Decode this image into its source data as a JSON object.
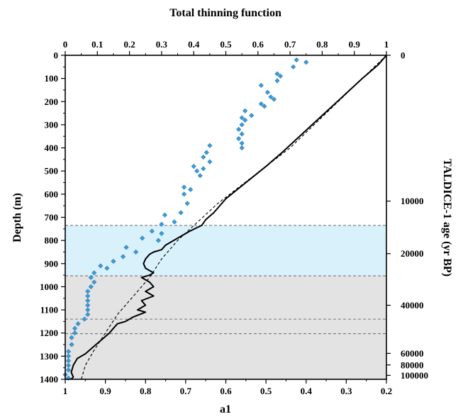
{
  "chart_data": {
    "type": "line",
    "top_axis": {
      "title": "Total thinning function",
      "range": [
        0,
        1
      ],
      "ticks": [
        "0",
        "0.1",
        "0.2",
        "0.3",
        "0.4",
        "0.5",
        "0.6",
        "0.7",
        "0.8",
        "0.9",
        "1"
      ]
    },
    "bottom_axis": {
      "title": "a1",
      "range": [
        1,
        0.2
      ],
      "ticks": [
        "1",
        "0.9",
        "0.8",
        "0.7",
        "0.6",
        "0.5",
        "0.4",
        "0.3",
        "0.2"
      ]
    },
    "left_axis": {
      "title": "Depth (m)",
      "range": [
        0,
        1400
      ],
      "ticks": [
        "0",
        "100",
        "200",
        "300",
        "400",
        "500",
        "600",
        "700",
        "800",
        "900",
        "1000",
        "1100",
        "1200",
        "1300",
        "1400"
      ]
    },
    "right_axis": {
      "title": "TALDICE-1 age (yr BP)",
      "ticks": [
        {
          "label": "0",
          "depth": 0
        },
        {
          "label": "10000",
          "depth": 630
        },
        {
          "label": "20000",
          "depth": 857
        },
        {
          "label": "40000",
          "depth": 1080
        },
        {
          "label": "60000",
          "depth": 1288
        },
        {
          "label": "80000",
          "depth": 1338
        },
        {
          "label": "100000",
          "depth": 1383
        }
      ]
    },
    "shaded_bands": [
      {
        "from": 735,
        "to": 953,
        "color": "#d9f1fb"
      },
      {
        "from": 953,
        "to": 1400,
        "color": "#e3e3e3"
      }
    ],
    "reference_lines_depth": [
      735,
      953,
      1140,
      1203
    ],
    "series": [
      {
        "style": "solid",
        "axis": "bottom",
        "color": "#000000",
        "points": [
          [
            0.2,
            0
          ],
          [
            0.22,
            40
          ],
          [
            0.26,
            100
          ],
          [
            0.31,
            180
          ],
          [
            0.36,
            260
          ],
          [
            0.41,
            340
          ],
          [
            0.46,
            420
          ],
          [
            0.5,
            480
          ],
          [
            0.55,
            550
          ],
          [
            0.6,
            620
          ],
          [
            0.63,
            680
          ],
          [
            0.65,
            710
          ],
          [
            0.66,
            735
          ],
          [
            0.69,
            760
          ],
          [
            0.72,
            790
          ],
          [
            0.75,
            820
          ],
          [
            0.76,
            840
          ],
          [
            0.78,
            850
          ],
          [
            0.79,
            860
          ],
          [
            0.8,
            880
          ],
          [
            0.805,
            900
          ],
          [
            0.8,
            920
          ],
          [
            0.79,
            930
          ],
          [
            0.78,
            940
          ],
          [
            0.79,
            950
          ],
          [
            0.81,
            960
          ],
          [
            0.79,
            980
          ],
          [
            0.78,
            1000
          ],
          [
            0.8,
            1020
          ],
          [
            0.78,
            1040
          ],
          [
            0.81,
            1060
          ],
          [
            0.8,
            1080
          ],
          [
            0.82,
            1100
          ],
          [
            0.8,
            1110
          ],
          [
            0.83,
            1130
          ],
          [
            0.85,
            1150
          ],
          [
            0.87,
            1160
          ],
          [
            0.88,
            1180
          ],
          [
            0.89,
            1200
          ],
          [
            0.91,
            1230
          ],
          [
            0.93,
            1260
          ],
          [
            0.95,
            1290
          ],
          [
            0.97,
            1310
          ],
          [
            0.98,
            1340
          ],
          [
            0.985,
            1370
          ],
          [
            0.98,
            1390
          ],
          [
            0.985,
            1400
          ]
        ]
      },
      {
        "style": "dashed",
        "axis": "bottom",
        "color": "#000000",
        "points": [
          [
            0.2,
            0
          ],
          [
            0.26,
            100
          ],
          [
            0.32,
            200
          ],
          [
            0.38,
            300
          ],
          [
            0.44,
            400
          ],
          [
            0.5,
            480
          ],
          [
            0.56,
            560
          ],
          [
            0.62,
            640
          ],
          [
            0.67,
            720
          ],
          [
            0.72,
            800
          ],
          [
            0.76,
            880
          ],
          [
            0.79,
            960
          ],
          [
            0.83,
            1040
          ],
          [
            0.87,
            1120
          ],
          [
            0.9,
            1200
          ],
          [
            0.93,
            1280
          ],
          [
            0.95,
            1340
          ],
          [
            0.96,
            1400
          ]
        ]
      },
      {
        "style": "markers",
        "axis": "top",
        "marker": "diamond",
        "color": "#3a9ad9",
        "points": [
          [
            0.72,
            20
          ],
          [
            0.75,
            30
          ],
          [
            0.71,
            50
          ],
          [
            0.66,
            80
          ],
          [
            0.67,
            90
          ],
          [
            0.66,
            110
          ],
          [
            0.61,
            130
          ],
          [
            0.63,
            160
          ],
          [
            0.64,
            180
          ],
          [
            0.65,
            190
          ],
          [
            0.61,
            210
          ],
          [
            0.62,
            220
          ],
          [
            0.56,
            240
          ],
          [
            0.58,
            260
          ],
          [
            0.55,
            270
          ],
          [
            0.56,
            280
          ],
          [
            0.55,
            300
          ],
          [
            0.54,
            320
          ],
          [
            0.55,
            340
          ],
          [
            0.54,
            360
          ],
          [
            0.55,
            380
          ],
          [
            0.55,
            400
          ],
          [
            0.45,
            390
          ],
          [
            0.44,
            420
          ],
          [
            0.43,
            440
          ],
          [
            0.45,
            460
          ],
          [
            0.4,
            480
          ],
          [
            0.43,
            490
          ],
          [
            0.41,
            500
          ],
          [
            0.42,
            520
          ],
          [
            0.37,
            570
          ],
          [
            0.39,
            580
          ],
          [
            0.37,
            600
          ],
          [
            0.38,
            640
          ],
          [
            0.36,
            680
          ],
          [
            0.31,
            690
          ],
          [
            0.34,
            720
          ],
          [
            0.3,
            730
          ],
          [
            0.27,
            760
          ],
          [
            0.3,
            770
          ],
          [
            0.24,
            790
          ],
          [
            0.29,
            800
          ],
          [
            0.19,
            830
          ],
          [
            0.22,
            850
          ],
          [
            0.18,
            870
          ],
          [
            0.15,
            890
          ],
          [
            0.11,
            910
          ],
          [
            0.13,
            920
          ],
          [
            0.09,
            940
          ],
          [
            0.08,
            960
          ],
          [
            0.09,
            980
          ],
          [
            0.08,
            1000
          ],
          [
            0.07,
            1020
          ],
          [
            0.07,
            1040
          ],
          [
            0.07,
            1060
          ],
          [
            0.07,
            1080
          ],
          [
            0.07,
            1100
          ],
          [
            0.07,
            1120
          ],
          [
            0.06,
            1140
          ],
          [
            0.04,
            1160
          ],
          [
            0.03,
            1180
          ],
          [
            0.03,
            1200
          ],
          [
            0.02,
            1220
          ],
          [
            0.02,
            1250
          ],
          [
            0.01,
            1280
          ],
          [
            0.01,
            1300
          ],
          [
            0.01,
            1320
          ],
          [
            0.01,
            1340
          ],
          [
            0.01,
            1360
          ],
          [
            0.0,
            1380
          ],
          [
            0.01,
            1395
          ]
        ]
      }
    ]
  }
}
